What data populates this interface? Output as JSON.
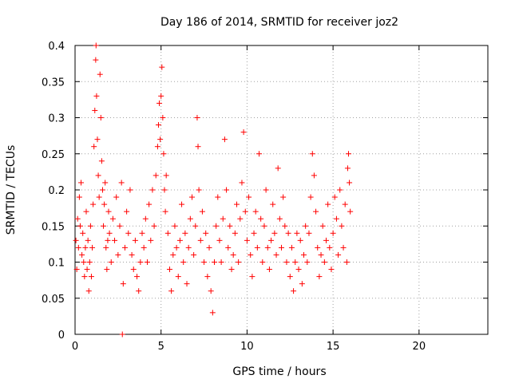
{
  "chart_data": {
    "type": "scatter",
    "title": "Day 186 of 2014, SRMTID for receiver joz2",
    "xlabel": "GPS time / hours",
    "ylabel": "SRMTID / TECUs",
    "xlim": [
      0,
      24
    ],
    "ylim": [
      0,
      0.4
    ],
    "x_ticks": [
      0,
      5,
      10,
      15,
      20
    ],
    "y_ticks": [
      0,
      0.05,
      0.1,
      0.15,
      0.2,
      0.25,
      0.3,
      0.35,
      0.4
    ],
    "x_tick_labels": [
      "0",
      "5",
      "10",
      "15",
      "20"
    ],
    "y_tick_labels": [
      "0",
      "0.05",
      "0.1",
      "0.15",
      "0.2",
      "0.25",
      "0.3",
      "0.35",
      "0.4"
    ],
    "grid": true,
    "marker": "+",
    "marker_color": "#ff0000",
    "series": [
      {
        "points": [
          [
            0.05,
            0.13
          ],
          [
            0.1,
            0.09
          ],
          [
            0.15,
            0.16
          ],
          [
            0.2,
            0.12
          ],
          [
            0.25,
            0.19
          ],
          [
            0.3,
            0.15
          ],
          [
            0.35,
            0.21
          ],
          [
            0.4,
            0.11
          ],
          [
            0.45,
            0.14
          ],
          [
            0.5,
            0.1
          ],
          [
            0.55,
            0.08
          ],
          [
            0.6,
            0.12
          ],
          [
            0.65,
            0.17
          ],
          [
            0.7,
            0.09
          ],
          [
            0.75,
            0.13
          ],
          [
            0.8,
            0.06
          ],
          [
            0.85,
            0.1
          ],
          [
            0.9,
            0.15
          ],
          [
            0.95,
            0.08
          ],
          [
            1.0,
            0.12
          ],
          [
            1.05,
            0.18
          ],
          [
            1.1,
            0.26
          ],
          [
            1.15,
            0.31
          ],
          [
            1.2,
            0.38
          ],
          [
            1.22,
            0.4
          ],
          [
            1.25,
            0.33
          ],
          [
            1.3,
            0.27
          ],
          [
            1.35,
            0.22
          ],
          [
            1.4,
            0.19
          ],
          [
            1.45,
            0.36
          ],
          [
            1.5,
            0.3
          ],
          [
            1.55,
            0.24
          ],
          [
            1.6,
            0.2
          ],
          [
            1.65,
            0.15
          ],
          [
            1.7,
            0.18
          ],
          [
            1.75,
            0.21
          ],
          [
            1.8,
            0.12
          ],
          [
            1.85,
            0.09
          ],
          [
            1.9,
            0.13
          ],
          [
            1.95,
            0.17
          ],
          [
            2.0,
            0.14
          ],
          [
            2.1,
            0.1
          ],
          [
            2.2,
            0.16
          ],
          [
            2.3,
            0.13
          ],
          [
            2.4,
            0.19
          ],
          [
            2.5,
            0.11
          ],
          [
            2.6,
            0.15
          ],
          [
            2.7,
            0.21
          ],
          [
            2.75,
            0.0
          ],
          [
            2.8,
            0.07
          ],
          [
            2.9,
            0.12
          ],
          [
            3.0,
            0.17
          ],
          [
            3.1,
            0.14
          ],
          [
            3.2,
            0.2
          ],
          [
            3.3,
            0.11
          ],
          [
            3.4,
            0.09
          ],
          [
            3.5,
            0.13
          ],
          [
            3.6,
            0.08
          ],
          [
            3.7,
            0.06
          ],
          [
            3.8,
            0.1
          ],
          [
            3.9,
            0.14
          ],
          [
            4.0,
            0.12
          ],
          [
            4.1,
            0.16
          ],
          [
            4.2,
            0.1
          ],
          [
            4.3,
            0.18
          ],
          [
            4.4,
            0.13
          ],
          [
            4.5,
            0.2
          ],
          [
            4.6,
            0.15
          ],
          [
            4.7,
            0.22
          ],
          [
            4.8,
            0.26
          ],
          [
            4.85,
            0.29
          ],
          [
            4.9,
            0.32
          ],
          [
            4.95,
            0.27
          ],
          [
            5.0,
            0.33
          ],
          [
            5.05,
            0.37
          ],
          [
            5.1,
            0.3
          ],
          [
            5.15,
            0.25
          ],
          [
            5.2,
            0.2
          ],
          [
            5.25,
            0.17
          ],
          [
            5.3,
            0.22
          ],
          [
            5.4,
            0.14
          ],
          [
            5.5,
            0.09
          ],
          [
            5.6,
            0.06
          ],
          [
            5.7,
            0.11
          ],
          [
            5.8,
            0.15
          ],
          [
            5.9,
            0.12
          ],
          [
            6.0,
            0.08
          ],
          [
            6.1,
            0.13
          ],
          [
            6.2,
            0.18
          ],
          [
            6.3,
            0.1
          ],
          [
            6.4,
            0.14
          ],
          [
            6.5,
            0.07
          ],
          [
            6.6,
            0.12
          ],
          [
            6.7,
            0.16
          ],
          [
            6.8,
            0.19
          ],
          [
            6.9,
            0.11
          ],
          [
            7.0,
            0.15
          ],
          [
            7.1,
            0.3
          ],
          [
            7.15,
            0.26
          ],
          [
            7.2,
            0.2
          ],
          [
            7.3,
            0.13
          ],
          [
            7.4,
            0.17
          ],
          [
            7.5,
            0.1
          ],
          [
            7.6,
            0.14
          ],
          [
            7.7,
            0.08
          ],
          [
            7.8,
            0.12
          ],
          [
            7.9,
            0.06
          ],
          [
            8.0,
            0.03
          ],
          [
            8.1,
            0.1
          ],
          [
            8.2,
            0.15
          ],
          [
            8.3,
            0.19
          ],
          [
            8.4,
            0.13
          ],
          [
            8.5,
            0.1
          ],
          [
            8.6,
            0.16
          ],
          [
            8.7,
            0.27
          ],
          [
            8.8,
            0.2
          ],
          [
            8.9,
            0.12
          ],
          [
            9.0,
            0.15
          ],
          [
            9.1,
            0.09
          ],
          [
            9.2,
            0.11
          ],
          [
            9.3,
            0.14
          ],
          [
            9.4,
            0.18
          ],
          [
            9.5,
            0.1
          ],
          [
            9.6,
            0.16
          ],
          [
            9.7,
            0.21
          ],
          [
            9.8,
            0.28
          ],
          [
            9.9,
            0.17
          ],
          [
            10.0,
            0.13
          ],
          [
            10.1,
            0.19
          ],
          [
            10.2,
            0.11
          ],
          [
            10.3,
            0.08
          ],
          [
            10.4,
            0.14
          ],
          [
            10.5,
            0.17
          ],
          [
            10.6,
            0.12
          ],
          [
            10.7,
            0.25
          ],
          [
            10.8,
            0.16
          ],
          [
            10.9,
            0.1
          ],
          [
            11.0,
            0.15
          ],
          [
            11.1,
            0.2
          ],
          [
            11.2,
            0.12
          ],
          [
            11.3,
            0.09
          ],
          [
            11.4,
            0.13
          ],
          [
            11.5,
            0.18
          ],
          [
            11.6,
            0.14
          ],
          [
            11.7,
            0.11
          ],
          [
            11.8,
            0.23
          ],
          [
            11.9,
            0.16
          ],
          [
            12.0,
            0.12
          ],
          [
            12.1,
            0.19
          ],
          [
            12.2,
            0.15
          ],
          [
            12.3,
            0.1
          ],
          [
            12.4,
            0.14
          ],
          [
            12.5,
            0.08
          ],
          [
            12.6,
            0.12
          ],
          [
            12.7,
            0.06
          ],
          [
            12.8,
            0.1
          ],
          [
            12.9,
            0.14
          ],
          [
            13.0,
            0.09
          ],
          [
            13.1,
            0.13
          ],
          [
            13.2,
            0.07
          ],
          [
            13.3,
            0.11
          ],
          [
            13.4,
            0.15
          ],
          [
            13.5,
            0.1
          ],
          [
            13.6,
            0.14
          ],
          [
            13.7,
            0.19
          ],
          [
            13.8,
            0.25
          ],
          [
            13.9,
            0.22
          ],
          [
            14.0,
            0.17
          ],
          [
            14.1,
            0.12
          ],
          [
            14.2,
            0.08
          ],
          [
            14.3,
            0.11
          ],
          [
            14.4,
            0.15
          ],
          [
            14.5,
            0.1
          ],
          [
            14.6,
            0.13
          ],
          [
            14.7,
            0.18
          ],
          [
            14.8,
            0.12
          ],
          [
            14.9,
            0.09
          ],
          [
            15.0,
            0.14
          ],
          [
            15.1,
            0.19
          ],
          [
            15.2,
            0.16
          ],
          [
            15.3,
            0.11
          ],
          [
            15.4,
            0.2
          ],
          [
            15.5,
            0.15
          ],
          [
            15.6,
            0.12
          ],
          [
            15.7,
            0.18
          ],
          [
            15.8,
            0.1
          ],
          [
            15.85,
            0.23
          ],
          [
            15.9,
            0.25
          ],
          [
            15.95,
            0.21
          ],
          [
            16.0,
            0.17
          ]
        ]
      }
    ]
  }
}
